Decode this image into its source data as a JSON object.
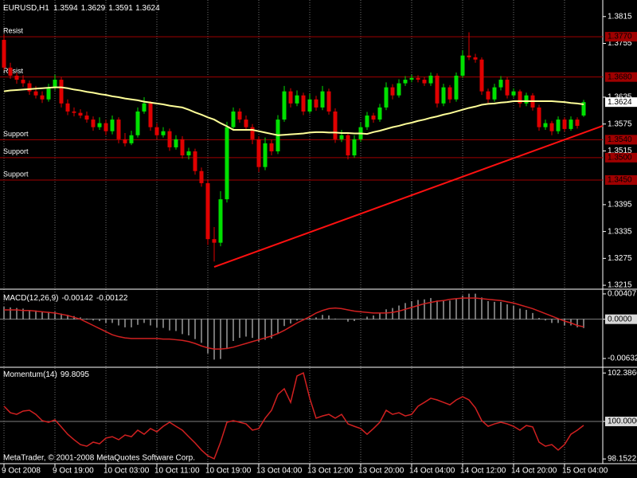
{
  "chart_data": [
    {
      "type": "candlestick",
      "title": "EURUSD,H1",
      "footer": "MetaTrader, © 2001-2008 MetaQuotes Software Corp.",
      "categories": [
        "9 Oct 2008",
        null,
        null,
        null,
        null,
        null,
        null,
        null,
        "9 Oct 19:00",
        null,
        null,
        null,
        null,
        null,
        null,
        null,
        "10 Oct 03:00",
        null,
        null,
        null,
        null,
        null,
        null,
        null,
        "10 Oct 11:00",
        null,
        null,
        null,
        null,
        null,
        null,
        null,
        "10 Oct 19:00",
        null,
        null,
        null,
        null,
        null,
        null,
        null,
        "13 Oct 04:00",
        null,
        null,
        null,
        null,
        null,
        null,
        null,
        "13 Oct 12:00",
        null,
        null,
        null,
        null,
        null,
        null,
        null,
        "13 Oct 20:00",
        null,
        null,
        null,
        null,
        null,
        null,
        null,
        "14 Oct 04:00",
        null,
        null,
        null,
        null,
        null,
        null,
        null,
        "14 Oct 12:00",
        null,
        null,
        null,
        null,
        null,
        null,
        null,
        "14 Oct 20:00",
        null,
        null,
        null,
        null,
        null,
        null,
        null,
        "15 Oct 04:00",
        null,
        null,
        null
      ],
      "ohlc": [
        [
          1.3763,
          1.3775,
          1.3695,
          1.3701
        ],
        [
          1.3701,
          1.3712,
          1.3676,
          1.3683
        ],
        [
          1.3683,
          1.369,
          1.3665,
          1.3674
        ],
        [
          1.3674,
          1.3684,
          1.3658,
          1.3666
        ],
        [
          1.3666,
          1.3672,
          1.364,
          1.3648
        ],
        [
          1.3648,
          1.366,
          1.3632,
          1.3639
        ],
        [
          1.3639,
          1.3648,
          1.3622,
          1.363
        ],
        [
          1.363,
          1.3665,
          1.3625,
          1.3657
        ],
        [
          1.3657,
          1.3685,
          1.365,
          1.3674
        ],
        [
          1.3674,
          1.368,
          1.3612,
          1.3621
        ],
        [
          1.3621,
          1.363,
          1.3595,
          1.3603
        ],
        [
          1.3603,
          1.3612,
          1.3592,
          1.36
        ],
        [
          1.36,
          1.3608,
          1.3588,
          1.3594
        ],
        [
          1.3594,
          1.3603,
          1.3578,
          1.3585
        ],
        [
          1.3585,
          1.3592,
          1.356,
          1.3568
        ],
        [
          1.3568,
          1.359,
          1.3562,
          1.3577
        ],
        [
          1.3577,
          1.3585,
          1.355,
          1.3559
        ],
        [
          1.3559,
          1.3594,
          1.3552,
          1.3585
        ],
        [
          1.3585,
          1.359,
          1.3532,
          1.3541
        ],
        [
          1.3541,
          1.3555,
          1.3525,
          1.3532
        ],
        [
          1.3532,
          1.356,
          1.3528,
          1.355
        ],
        [
          1.355,
          1.3612,
          1.3545,
          1.3603
        ],
        [
          1.3603,
          1.3635,
          1.3598,
          1.3621
        ],
        [
          1.3621,
          1.3626,
          1.356,
          1.3568
        ],
        [
          1.3568,
          1.3577,
          1.3542,
          1.355
        ],
        [
          1.355,
          1.3568,
          1.3545,
          1.3559
        ],
        [
          1.3559,
          1.3565,
          1.3515,
          1.3523
        ],
        [
          1.3523,
          1.355,
          1.3518,
          1.3541
        ],
        [
          1.3541,
          1.3548,
          1.3498,
          1.3505
        ],
        [
          1.3505,
          1.3522,
          1.3496,
          1.3514
        ],
        [
          1.3514,
          1.352,
          1.3462,
          1.347
        ],
        [
          1.347,
          1.3478,
          1.3435,
          1.3443
        ],
        [
          1.3443,
          1.345,
          1.3305,
          1.3318
        ],
        [
          1.3318,
          1.3345,
          1.3268,
          1.331
        ],
        [
          1.331,
          1.3425,
          1.3302,
          1.3407
        ],
        [
          1.3407,
          1.358,
          1.34,
          1.3568
        ],
        [
          1.3568,
          1.3612,
          1.356,
          1.3603
        ],
        [
          1.3603,
          1.361,
          1.3578,
          1.3585
        ],
        [
          1.3585,
          1.3594,
          1.356,
          1.3568
        ],
        [
          1.3568,
          1.3575,
          1.353,
          1.3541
        ],
        [
          1.3541,
          1.3548,
          1.3468,
          1.3479
        ],
        [
          1.3479,
          1.3545,
          1.3472,
          1.3532
        ],
        [
          1.3532,
          1.354,
          1.3505,
          1.3514
        ],
        [
          1.3514,
          1.3595,
          1.3508,
          1.3585
        ],
        [
          1.3585,
          1.366,
          1.358,
          1.3648
        ],
        [
          1.3648,
          1.3655,
          1.3612,
          1.3621
        ],
        [
          1.3621,
          1.365,
          1.3615,
          1.3639
        ],
        [
          1.3639,
          1.3645,
          1.3595,
          1.3603
        ],
        [
          1.3603,
          1.3642,
          1.3598,
          1.363
        ],
        [
          1.363,
          1.3638,
          1.3605,
          1.3612
        ],
        [
          1.3612,
          1.366,
          1.3606,
          1.3648
        ],
        [
          1.3648,
          1.3654,
          1.3596,
          1.3603
        ],
        [
          1.3603,
          1.361,
          1.3533,
          1.3541
        ],
        [
          1.3541,
          1.3562,
          1.3535,
          1.355
        ],
        [
          1.355,
          1.3556,
          1.3496,
          1.3505
        ],
        [
          1.3505,
          1.355,
          1.35,
          1.3541
        ],
        [
          1.3541,
          1.3578,
          1.3535,
          1.3568
        ],
        [
          1.3568,
          1.3602,
          1.3562,
          1.3594
        ],
        [
          1.3594,
          1.36,
          1.3578,
          1.3585
        ],
        [
          1.3585,
          1.362,
          1.358,
          1.3612
        ],
        [
          1.3612,
          1.3668,
          1.3606,
          1.3657
        ],
        [
          1.3657,
          1.3664,
          1.363,
          1.3639
        ],
        [
          1.3639,
          1.3675,
          1.3634,
          1.3666
        ],
        [
          1.3666,
          1.3682,
          1.366,
          1.3674
        ],
        [
          1.3674,
          1.3685,
          1.3668,
          1.3678
        ],
        [
          1.3678,
          1.3684,
          1.3668,
          1.3674
        ],
        [
          1.3674,
          1.368,
          1.366,
          1.3666
        ],
        [
          1.3666,
          1.369,
          1.366,
          1.3683
        ],
        [
          1.3683,
          1.3688,
          1.3612,
          1.3621
        ],
        [
          1.3621,
          1.3665,
          1.3615,
          1.3657
        ],
        [
          1.3657,
          1.3662,
          1.3622,
          1.363
        ],
        [
          1.363,
          1.369,
          1.3625,
          1.3683
        ],
        [
          1.3683,
          1.374,
          1.3678,
          1.3728
        ],
        [
          1.3728,
          1.378,
          1.3718,
          1.3724
        ],
        [
          1.3724,
          1.3732,
          1.3712,
          1.3719
        ],
        [
          1.3719,
          1.3724,
          1.364,
          1.3648
        ],
        [
          1.3648,
          1.3654,
          1.3622,
          1.363
        ],
        [
          1.363,
          1.3665,
          1.3625,
          1.3657
        ],
        [
          1.3657,
          1.3682,
          1.365,
          1.3674
        ],
        [
          1.3674,
          1.368,
          1.3632,
          1.3639
        ],
        [
          1.3639,
          1.3655,
          1.3634,
          1.3648
        ],
        [
          1.3648,
          1.3652,
          1.3612,
          1.3621
        ],
        [
          1.3621,
          1.3645,
          1.3615,
          1.3639
        ],
        [
          1.3639,
          1.3644,
          1.3605,
          1.3612
        ],
        [
          1.3612,
          1.3618,
          1.356,
          1.3568
        ],
        [
          1.3568,
          1.3585,
          1.3562,
          1.3577
        ],
        [
          1.3577,
          1.3582,
          1.355,
          1.3559
        ],
        [
          1.3559,
          1.3592,
          1.3553,
          1.3585
        ],
        [
          1.3585,
          1.359,
          1.3558,
          1.3564
        ],
        [
          1.3564,
          1.3592,
          1.356,
          1.3585
        ],
        [
          1.3585,
          1.359,
          1.3565,
          1.3571
        ],
        [
          1.3594,
          1.3629,
          1.3591,
          1.3624
        ]
      ],
      "up_color": "#00e000",
      "down_color": "#e00000",
      "ma": {
        "color": "#ffff99",
        "values": [
          1.3648,
          1.365,
          1.3651,
          1.3652,
          1.3653,
          1.3654,
          1.3655,
          1.3656,
          1.3657,
          1.3657,
          1.3655,
          1.3652,
          1.365,
          1.3647,
          1.3645,
          1.3642,
          1.364,
          1.3637,
          1.3635,
          1.3632,
          1.363,
          1.3628,
          1.3625,
          1.3623,
          1.3621,
          1.3619,
          1.3616,
          1.3614,
          1.3612,
          1.3607,
          1.3601,
          1.3596,
          1.359,
          1.3585,
          1.3577,
          1.357,
          1.3562,
          1.3562,
          1.3562,
          1.3562,
          1.3559,
          1.3556,
          1.3553,
          1.355,
          1.3551,
          1.3552,
          1.3553,
          1.3554,
          1.3556,
          1.3557,
          1.3557,
          1.3556,
          1.3556,
          1.3555,
          1.3555,
          1.3554,
          1.3554,
          1.3553,
          1.3557,
          1.356,
          1.3564,
          1.3568,
          1.3571,
          1.3575,
          1.3578,
          1.3582,
          1.3585,
          1.3589,
          1.3592,
          1.3596,
          1.3599,
          1.3603,
          1.3607,
          1.3611,
          1.3614,
          1.3618,
          1.362,
          1.3621,
          1.3623,
          1.3624,
          1.3626,
          1.3626,
          1.3626,
          1.3626,
          1.3626,
          1.3626,
          1.3626,
          1.3625,
          1.3624,
          1.3622,
          1.3621,
          1.3619
        ]
      },
      "levels": {
        "color": "#a00000",
        "names": [
          "Resist",
          "Resist",
          "Support",
          "Support",
          "Support"
        ],
        "values": [
          1.377,
          1.368,
          1.354,
          1.35,
          1.345
        ],
        "value_labels": [
          "1.3770",
          "1.3680",
          "1.3540",
          "1.3500",
          "1.3450"
        ]
      },
      "trendline": {
        "color": "#ff1010",
        "x": [
          33,
          94
        ],
        "y": [
          1.3256,
          1.3571
        ]
      },
      "ylim": [
        1.3208,
        1.3852
      ],
      "yticks": [
        1.3815,
        1.3755,
        1.3635,
        1.3575,
        1.3515,
        1.3395,
        1.3335,
        1.3275,
        1.3215
      ],
      "grid": true
    },
    {
      "type": "bar",
      "title": "MACD(12,26,9)",
      "color": "#e8e8e8",
      "values": [
        0.002,
        0.0019,
        0.0018,
        0.0017,
        0.0015,
        0.0014,
        0.0012,
        0.0012,
        0.0012,
        0.0009,
        0.0007,
        0.0005,
        0.0003,
        0.0001,
        -0.0002,
        -0.0003,
        -0.0006,
        -0.0006,
        -0.001,
        -0.0013,
        -0.0013,
        -0.0009,
        -0.0006,
        -0.001,
        -0.0013,
        -0.0014,
        -0.0018,
        -0.0019,
        -0.0024,
        -0.0026,
        -0.0032,
        -0.0038,
        -0.0055,
        -0.0065,
        -0.0064,
        -0.0048,
        -0.0035,
        -0.003,
        -0.0028,
        -0.003,
        -0.0036,
        -0.0033,
        -0.0031,
        -0.0022,
        -0.0011,
        -0.0007,
        -0.0002,
        -0.0002,
        0.0002,
        0.0003,
        0.0007,
        0.0006,
        0.0001,
        0.0,
        -0.0004,
        -0.0003,
        0.0,
        0.0004,
        0.0006,
        0.001,
        0.0016,
        0.0018,
        0.0022,
        0.0026,
        0.0029,
        0.0031,
        0.0032,
        0.0034,
        0.003,
        0.0031,
        0.003,
        0.0033,
        0.0038,
        0.0041,
        0.0041,
        0.0035,
        0.0029,
        0.0028,
        0.0028,
        0.0024,
        0.0022,
        0.0017,
        0.0015,
        0.001,
        0.0002,
        -0.0002,
        -0.0006,
        -0.0006,
        -0.001,
        -0.001,
        -0.0013,
        -0.00142
      ],
      "line": {
        "color": "#d02020",
        "values": [
          0.0015,
          0.0015,
          0.0015,
          0.0014,
          0.0014,
          0.0013,
          0.0012,
          0.0011,
          0.001,
          0.0008,
          0.0006,
          0.0003,
          0.0,
          -0.0005,
          -0.001,
          -0.0015,
          -0.002,
          -0.0025,
          -0.0028,
          -0.003,
          -0.0031,
          -0.0031,
          -0.0031,
          -0.0031,
          -0.0031,
          -0.0032,
          -0.0032,
          -0.0033,
          -0.0034,
          -0.0036,
          -0.0039,
          -0.0043,
          -0.0046,
          -0.0048,
          -0.0048,
          -0.0047,
          -0.0045,
          -0.0042,
          -0.0039,
          -0.0036,
          -0.0033,
          -0.003,
          -0.0027,
          -0.0023,
          -0.0018,
          -0.0012,
          -0.0006,
          -0.0001,
          0.0004,
          0.001,
          0.0014,
          0.0017,
          0.0018,
          0.0017,
          0.0015,
          0.0013,
          0.0012,
          0.0011,
          0.001,
          0.001,
          0.001,
          0.0011,
          0.0013,
          0.0016,
          0.0019,
          0.0022,
          0.0025,
          0.0027,
          0.0029,
          0.003,
          0.0032,
          0.0033,
          0.0034,
          0.0034,
          0.0034,
          0.0033,
          0.0032,
          0.0031,
          0.003,
          0.0028,
          0.0026,
          0.0023,
          0.002,
          0.0017,
          0.0013,
          0.0009,
          0.0005,
          0.0001,
          -0.0003,
          -0.0006,
          -0.001,
          -0.00122
        ]
      },
      "ylim": [
        -0.0076,
        0.0047
      ],
      "yticks": [
        0.00407,
        {
          "value": 0,
          "label": "0.0000"
        },
        -0.00632
      ]
    },
    {
      "type": "line",
      "title": "Momentum(14)",
      "color": "#d02020",
      "values": [
        100.75,
        100.43,
        100.35,
        100.51,
        100.55,
        100.35,
        100.04,
        99.96,
        100.08,
        99.73,
        99.37,
        99.1,
        98.86,
        98.78,
        98.98,
        98.9,
        99.18,
        99.25,
        99.1,
        99.33,
        99.25,
        99.57,
        99.37,
        99.65,
        99.49,
        99.76,
        99.96,
        99.76,
        99.57,
        99.25,
        98.94,
        98.59,
        98.31,
        98.16,
        98.98,
        99.96,
        100.04,
        99.96,
        99.88,
        99.57,
        99.65,
        100.16,
        100.55,
        101.33,
        101.61,
        100.94,
        102.24,
        102.39,
        101.14,
        100.16,
        100.27,
        100.35,
        100.16,
        100.35,
        99.88,
        99.76,
        99.65,
        99.37,
        99.65,
        99.96,
        100.55,
        100.35,
        100.43,
        100.27,
        100.35,
        100.75,
        100.94,
        101.14,
        101.06,
        100.94,
        100.82,
        101.06,
        101.22,
        101.06,
        100.67,
        100.04,
        99.76,
        99.88,
        99.96,
        99.88,
        99.76,
        99.57,
        99.8,
        99.73,
        98.98,
        98.78,
        98.86,
        98.59,
        98.86,
        99.37,
        99.57,
        99.8095
      ],
      "ylim": [
        97.92,
        102.63
      ],
      "yticks": [
        102.3866,
        {
          "value": 100,
          "label": "100.0000"
        },
        98.1522
      ]
    }
  ]
}
